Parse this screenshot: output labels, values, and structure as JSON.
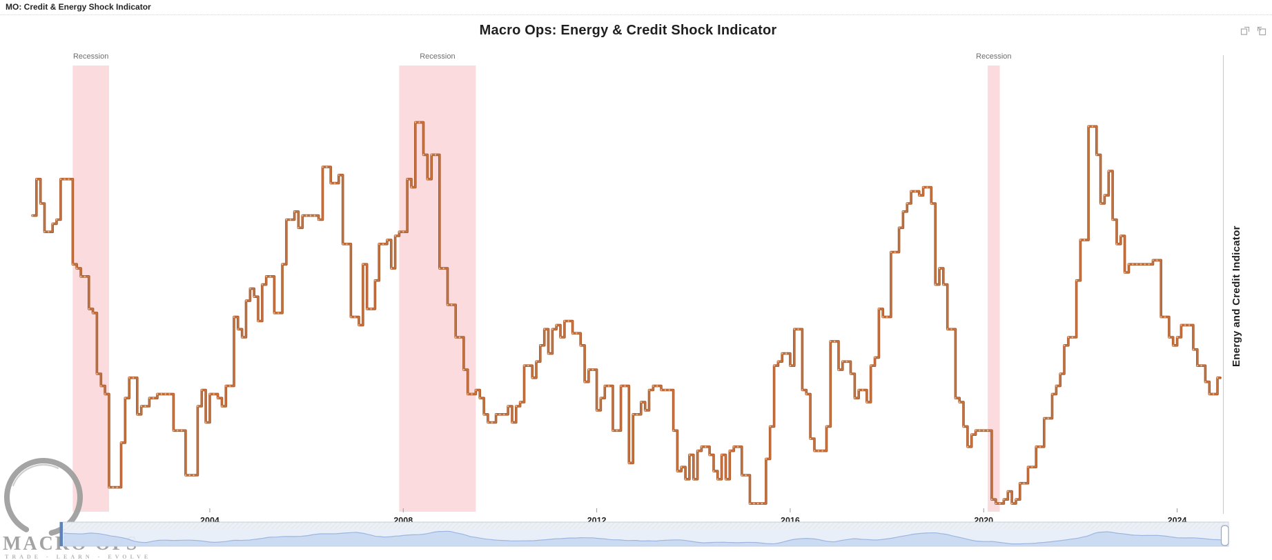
{
  "window": {
    "tab_title": "MO: Credit & Energy Shock Indicator"
  },
  "toolbar": {
    "icons": [
      "popout-icon",
      "restore-icon"
    ]
  },
  "branding": {
    "name": "MACRO OPS",
    "tagline": "TRADE - LEARN - EVOLVE"
  },
  "chart_data": {
    "type": "line",
    "step": true,
    "title": "Macro Ops: Energy & Credit Shock Indicator",
    "y_axis_label": "Energy and Credit Indicator",
    "x_start": "2000-05",
    "x_end": "2024-11",
    "frequency": "monthly",
    "value_scale": "normalized 0-100 (no y-axis tick labels shown in chart)",
    "ylim": [
      0,
      100
    ],
    "grid": false,
    "x_ticks": [
      2004,
      2008,
      2012,
      2016,
      2020,
      2024
    ],
    "line_color": "#AD5727",
    "line_inner_color": "#C97F4E",
    "marker_color": "#EDC59E",
    "band_color": "#FBDBDD",
    "brush_area_color": "#C9D9F1",
    "brush_bg_color": "#E7EDF8",
    "recession_bands": [
      {
        "label": "Recession",
        "start": "2001-03",
        "end": "2001-11"
      },
      {
        "label": "Recession",
        "start": "2007-12",
        "end": "2009-06"
      },
      {
        "label": "Recession",
        "start": "2020-02",
        "end": "2020-04"
      }
    ],
    "values": [
      72,
      81,
      75,
      68,
      68,
      70,
      71,
      81,
      81,
      81,
      60,
      59,
      57,
      57,
      49,
      48,
      33,
      30,
      28,
      5,
      5,
      5,
      16,
      27,
      32,
      32,
      23,
      25,
      25,
      27,
      27,
      28,
      28,
      28,
      28,
      19,
      19,
      19,
      8,
      8,
      8,
      25,
      29,
      21,
      28,
      28,
      27,
      25,
      30,
      30,
      47,
      44,
      42,
      51,
      54,
      52,
      46,
      55,
      57,
      57,
      48,
      48,
      60,
      71,
      71,
      73,
      69,
      72,
      72,
      72,
      72,
      71,
      84,
      84,
      80,
      80,
      82,
      65,
      65,
      47,
      47,
      45,
      60,
      49,
      49,
      56,
      65,
      65,
      66,
      59,
      67,
      68,
      68,
      81,
      79,
      95,
      95,
      87,
      81,
      87,
      87,
      59,
      59,
      50,
      50,
      42,
      42,
      34,
      28,
      28,
      29,
      27,
      23,
      21,
      21,
      23,
      23,
      23,
      25,
      21,
      25,
      26,
      35,
      35,
      32,
      36,
      40,
      44,
      38,
      44,
      45,
      42,
      46,
      46,
      43,
      43,
      40,
      31,
      34,
      34,
      24,
      27,
      30,
      30,
      19,
      19,
      30,
      30,
      11,
      23,
      23,
      26,
      24,
      29,
      30,
      30,
      29,
      29,
      29,
      19,
      9,
      10,
      7,
      13,
      7,
      14,
      15,
      15,
      13,
      9,
      7,
      13,
      7,
      14,
      15,
      15,
      8,
      8,
      1,
      1,
      1,
      1,
      12,
      20,
      35,
      36,
      38,
      38,
      35,
      44,
      44,
      29,
      28,
      17,
      14,
      14,
      14,
      20,
      41,
      41,
      34,
      36,
      36,
      33,
      27,
      29,
      29,
      26,
      35,
      37,
      49,
      47,
      47,
      63,
      63,
      69,
      73,
      75,
      78,
      78,
      77,
      79,
      79,
      75,
      55,
      59,
      55,
      44,
      44,
      27,
      26,
      20,
      15,
      18,
      19,
      19,
      19,
      19,
      2,
      1,
      1,
      2,
      4,
      1,
      2,
      6,
      6,
      10,
      10,
      15,
      15,
      22,
      22,
      28,
      30,
      33,
      40,
      42,
      42,
      56,
      66,
      66,
      94,
      94,
      87,
      75,
      77,
      83,
      71,
      65,
      67,
      58,
      60,
      60,
      60,
      60,
      60,
      60,
      61,
      61,
      47,
      47,
      42,
      40,
      42,
      45,
      45,
      45,
      39,
      35,
      35,
      31,
      28,
      28,
      32
    ]
  }
}
